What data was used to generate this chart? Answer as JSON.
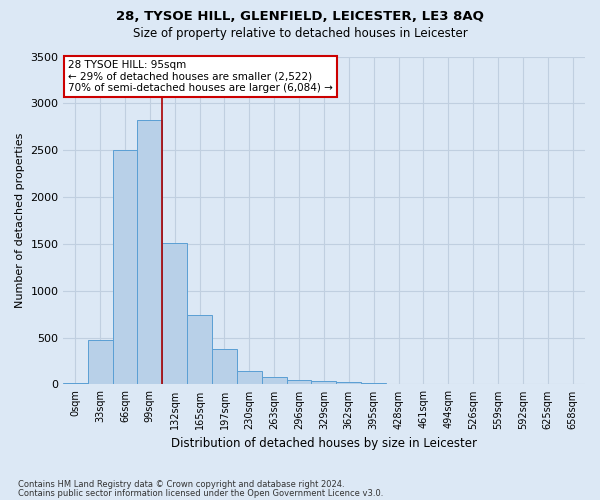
{
  "title": "28, TYSOE HILL, GLENFIELD, LEICESTER, LE3 8AQ",
  "subtitle": "Size of property relative to detached houses in Leicester",
  "xlabel": "Distribution of detached houses by size in Leicester",
  "ylabel": "Number of detached properties",
  "footnote1": "Contains HM Land Registry data © Crown copyright and database right 2024.",
  "footnote2": "Contains public sector information licensed under the Open Government Licence v3.0.",
  "bar_labels": [
    "0sqm",
    "33sqm",
    "66sqm",
    "99sqm",
    "132sqm",
    "165sqm",
    "197sqm",
    "230sqm",
    "263sqm",
    "296sqm",
    "329sqm",
    "362sqm",
    "395sqm",
    "428sqm",
    "461sqm",
    "494sqm",
    "526sqm",
    "559sqm",
    "592sqm",
    "625sqm",
    "658sqm"
  ],
  "bar_values": [
    20,
    470,
    2500,
    2820,
    1510,
    740,
    380,
    145,
    75,
    50,
    40,
    25,
    15,
    5,
    0,
    0,
    0,
    0,
    0,
    0,
    0
  ],
  "bar_color": "#b8d0e8",
  "bar_edge_color": "#5a9fd4",
  "vline_x": 3.5,
  "vline_color": "#aa0000",
  "ylim": [
    0,
    3500
  ],
  "yticks": [
    0,
    500,
    1000,
    1500,
    2000,
    2500,
    3000,
    3500
  ],
  "annotation_text": "28 TYSOE HILL: 95sqm\n← 29% of detached houses are smaller (2,522)\n70% of semi-detached houses are larger (6,084) →",
  "annotation_box_color": "#ffffff",
  "annotation_box_edge": "#cc0000",
  "bg_color": "#dce8f5",
  "plot_bg_color": "#dce8f5",
  "grid_color": "#c0cfe0"
}
